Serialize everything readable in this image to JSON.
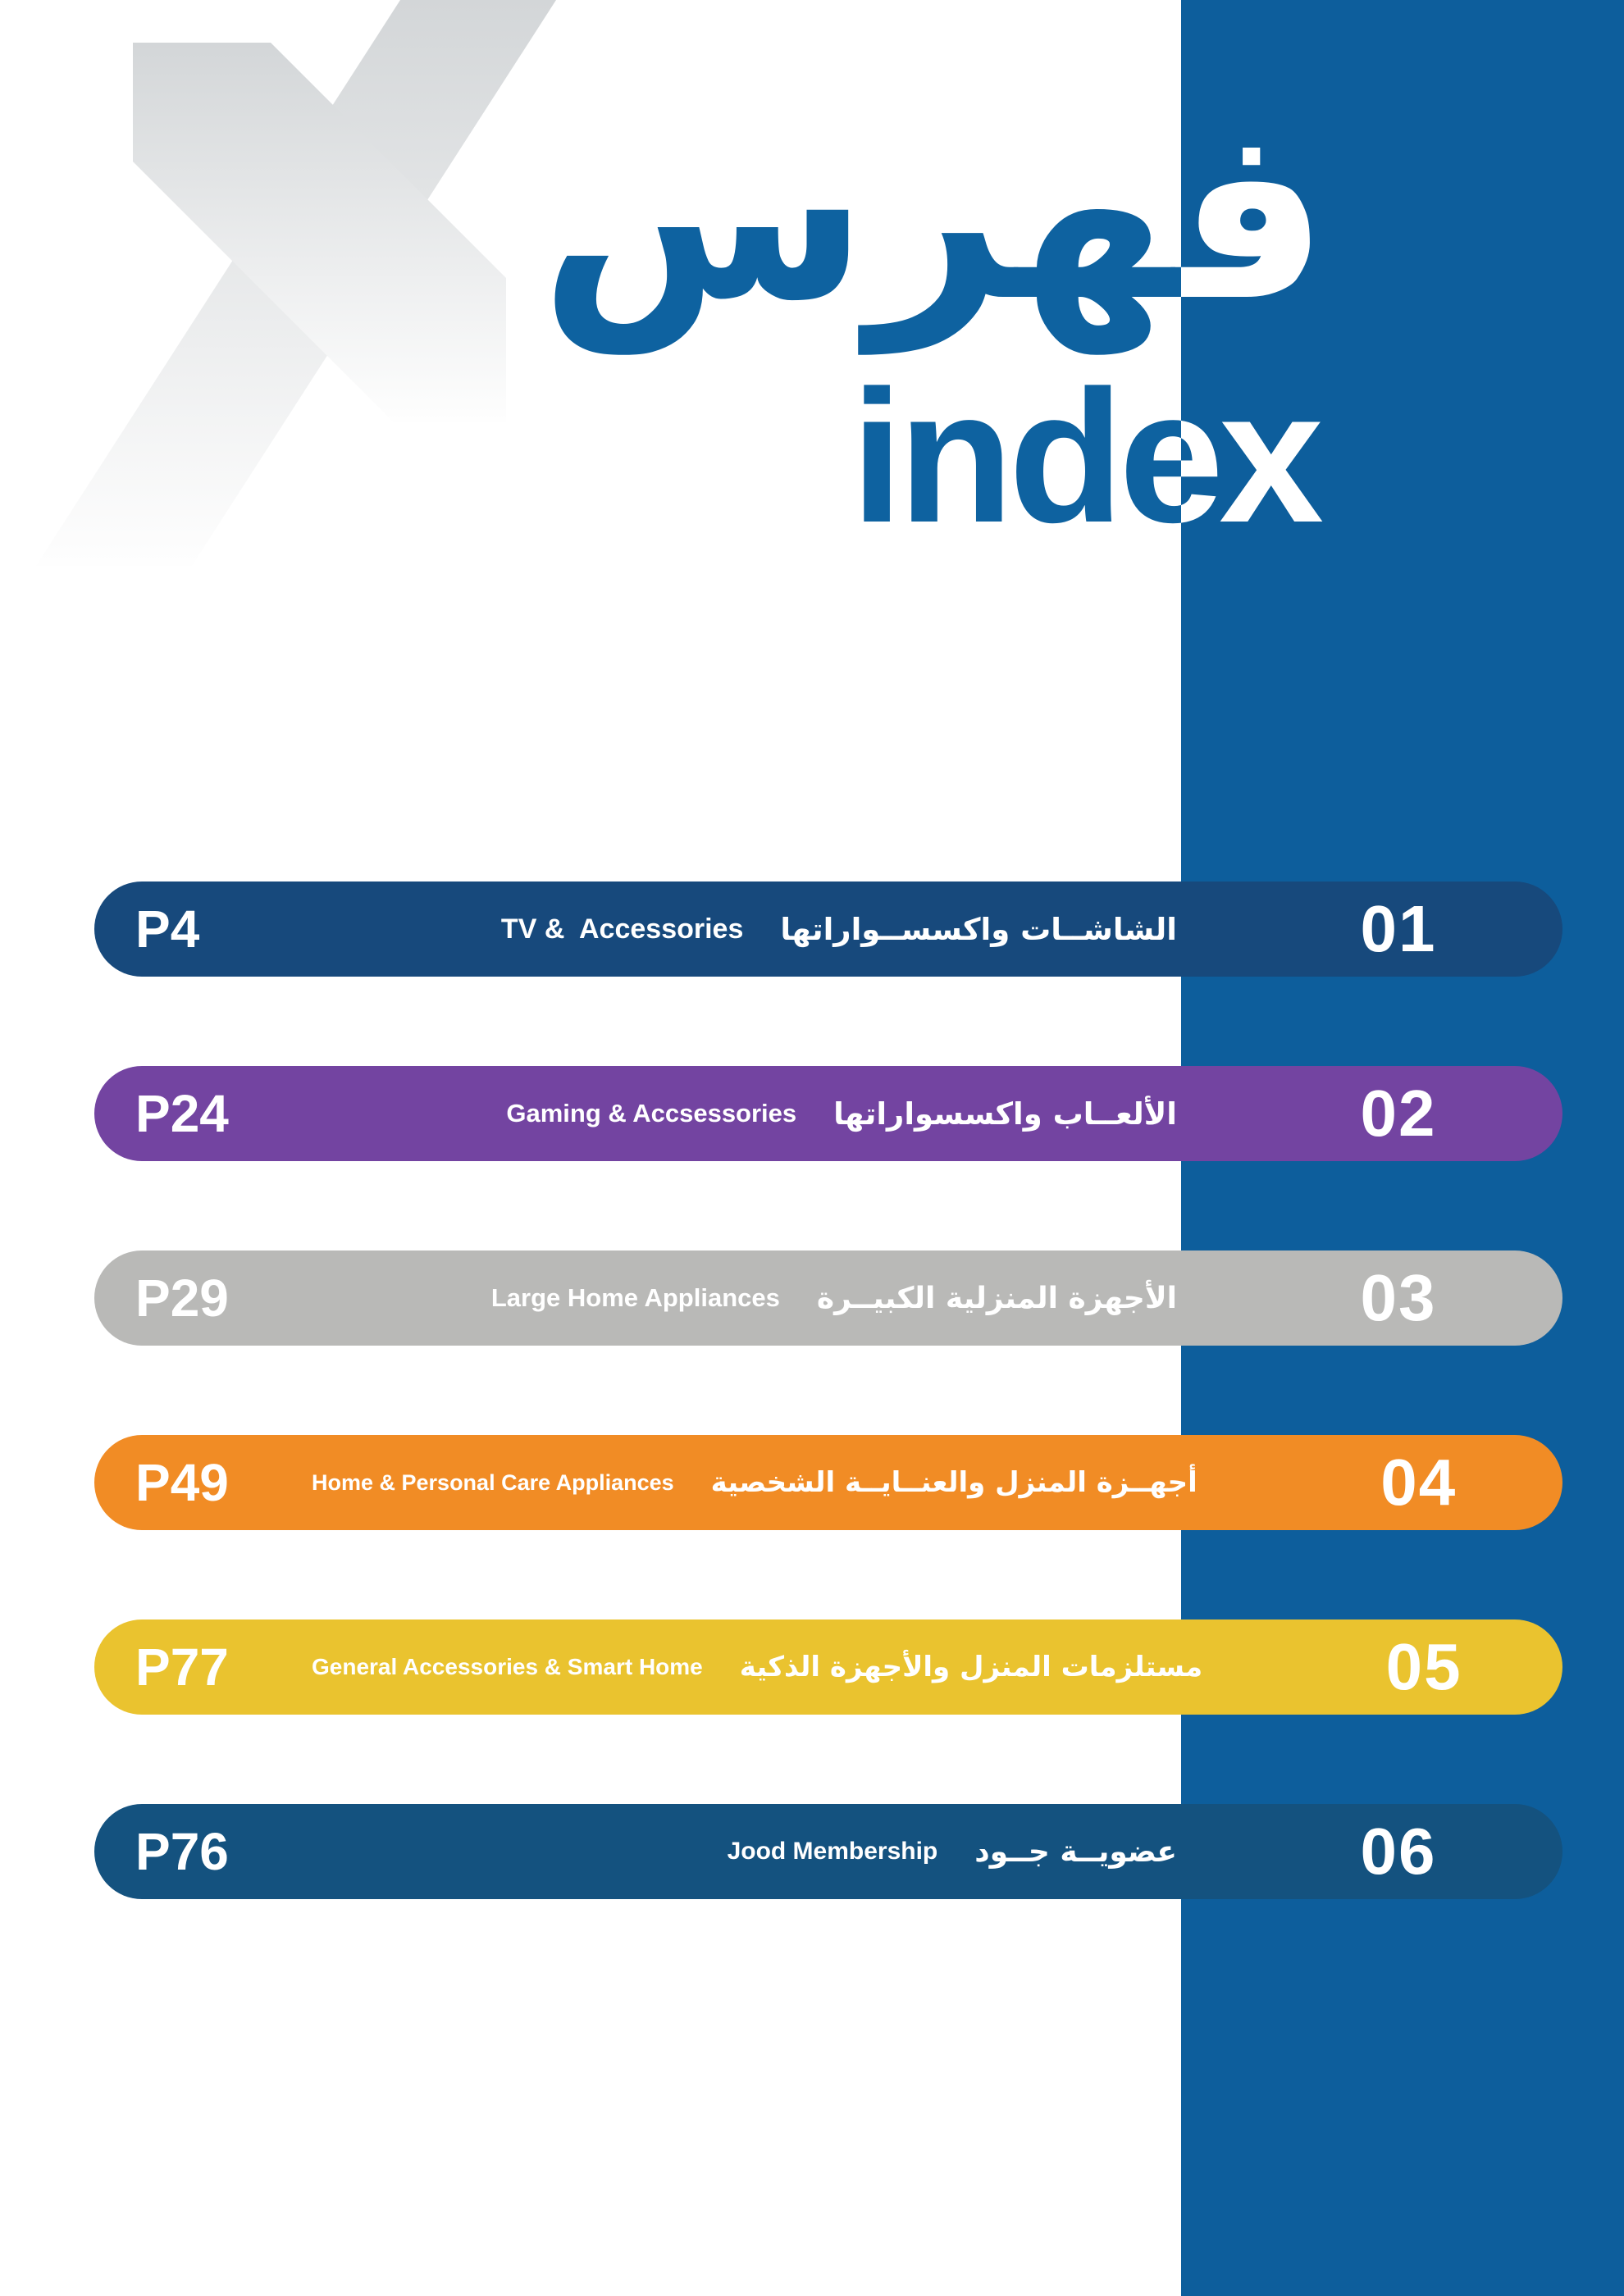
{
  "header": {
    "title_ar": "فهرس",
    "title_en": "index"
  },
  "watermark": {
    "glyph": "X",
    "top_color": "#d3d6d8",
    "bottom_color": "#fefefe"
  },
  "colors": {
    "band_blue": "#0d5e9c",
    "title_blue": "#0e62a0",
    "title_on_band": "#ffffff",
    "text_on_pill": "#ffffff"
  },
  "index_rows": [
    {
      "page": "P4",
      "en": "TV &  Accessories",
      "ar": "الشاشــات واكسســواراتها",
      "num": "01",
      "color": "#17497c"
    },
    {
      "page": "P24",
      "en": "Gaming & Accsessories",
      "ar": "الألعــاب واكسسواراتها",
      "num": "02",
      "color": "#7344a1"
    },
    {
      "page": "P29",
      "en": "Large Home Appliances",
      "ar": "الأجهزة المنزلية الكبيــرة",
      "num": "03",
      "color": "#b9b9b7"
    },
    {
      "page": "P49",
      "en": "Home & Personal Care Appliances",
      "ar": "أجهــزة المنزل والعنــايــة الشخصية",
      "num": "04",
      "color": "#f18c25"
    },
    {
      "page": "P77",
      "en": "General Accessories & Smart Home",
      "ar": "مستلزمات المنزل والأجهزة الذكية",
      "num": "05",
      "color": "#eac32f"
    },
    {
      "page": "P76",
      "en": "Jood Membership",
      "ar": "عضويــة جــود",
      "num": "06",
      "color": "#14527f"
    }
  ]
}
